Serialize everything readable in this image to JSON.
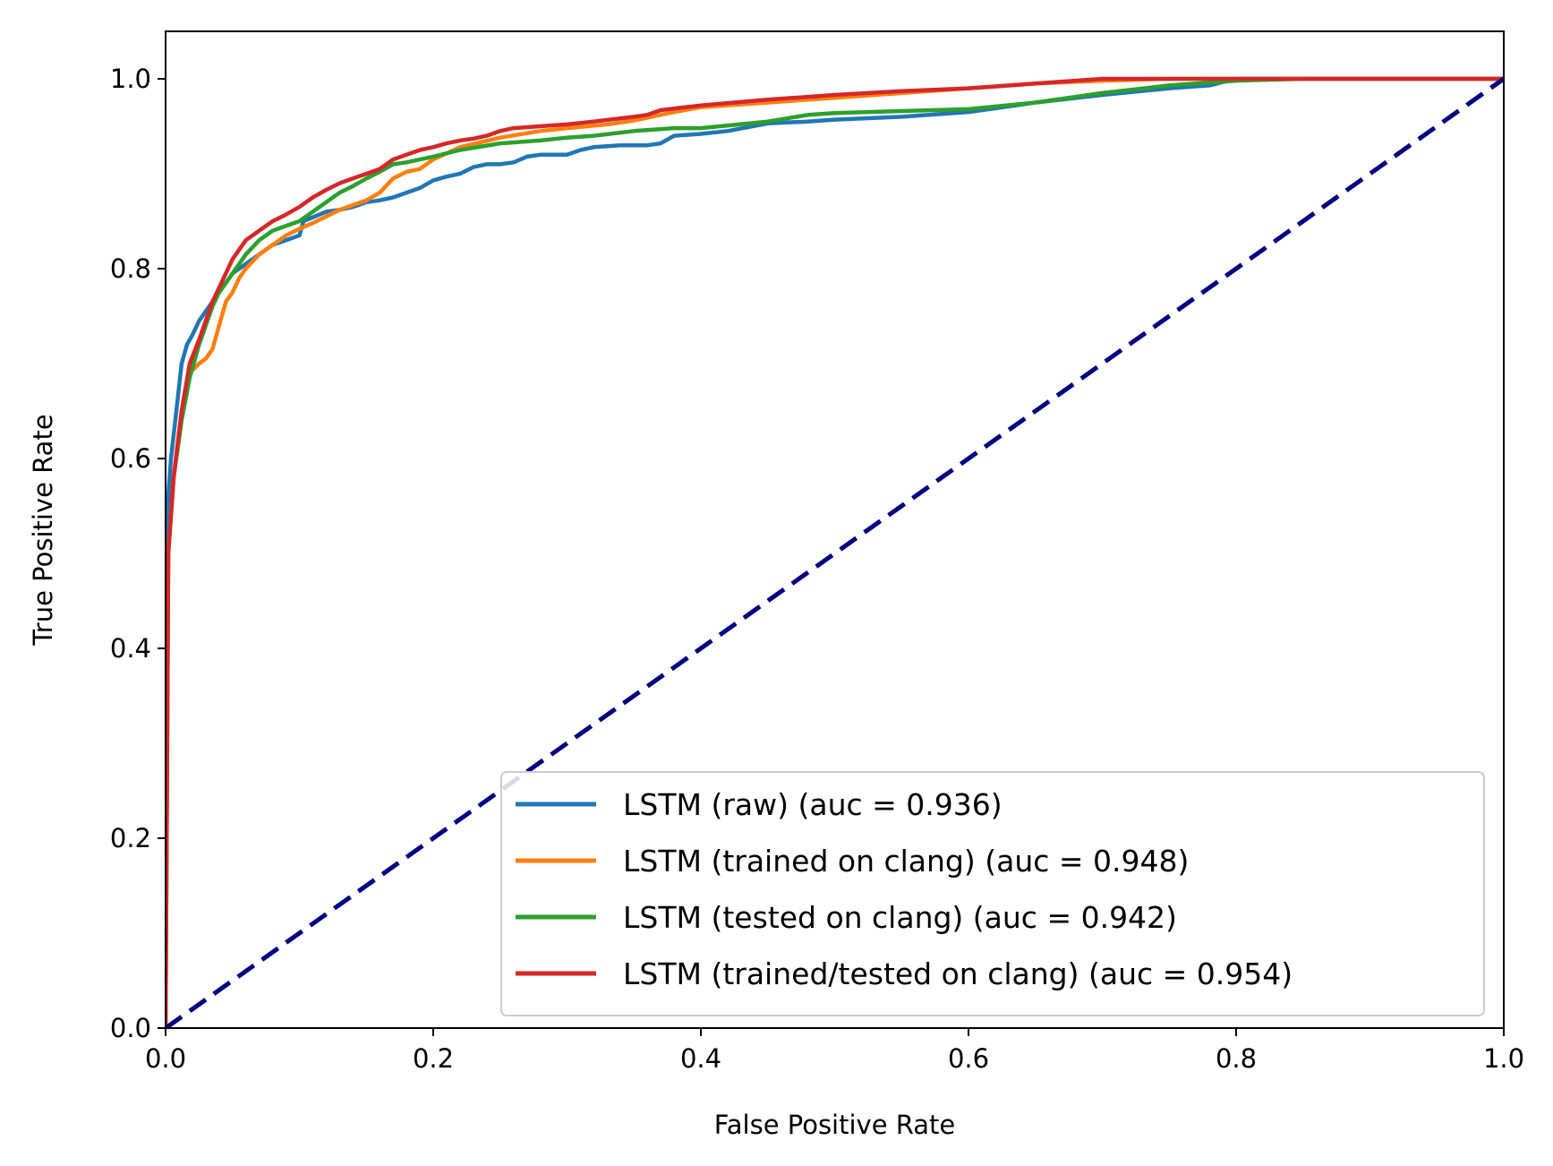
{
  "chart_data": {
    "type": "line",
    "title": "",
    "xlabel": "False Positive Rate",
    "ylabel": "True Positive Rate",
    "xlim": [
      0.0,
      1.0
    ],
    "ylim": [
      0.0,
      1.05
    ],
    "grid": false,
    "legend_position": "lower-right",
    "xticks": [
      "0.0",
      "0.2",
      "0.4",
      "0.6",
      "0.8",
      "1.0"
    ],
    "yticks": [
      "0.0",
      "0.2",
      "0.4",
      "0.6",
      "0.8",
      "1.0"
    ],
    "series": [
      {
        "name": "LSTM (raw) (auc = 0.936)",
        "color": "#1f77b4",
        "x": [
          0.0,
          0.001,
          0.004,
          0.008,
          0.012,
          0.016,
          0.02,
          0.025,
          0.03,
          0.035,
          0.04,
          0.045,
          0.05,
          0.06,
          0.07,
          0.08,
          0.09,
          0.1,
          0.103,
          0.12,
          0.13,
          0.14,
          0.15,
          0.16,
          0.17,
          0.19,
          0.2,
          0.21,
          0.22,
          0.23,
          0.24,
          0.25,
          0.26,
          0.27,
          0.28,
          0.3,
          0.31,
          0.32,
          0.34,
          0.36,
          0.37,
          0.38,
          0.4,
          0.42,
          0.45,
          0.48,
          0.5,
          0.55,
          0.6,
          0.65,
          0.7,
          0.75,
          0.78,
          0.8,
          0.85,
          0.9,
          1.0
        ],
        "y": [
          0.0,
          0.54,
          0.6,
          0.65,
          0.7,
          0.72,
          0.73,
          0.745,
          0.755,
          0.765,
          0.775,
          0.785,
          0.795,
          0.805,
          0.815,
          0.825,
          0.83,
          0.835,
          0.85,
          0.86,
          0.862,
          0.865,
          0.87,
          0.872,
          0.875,
          0.885,
          0.893,
          0.897,
          0.9,
          0.907,
          0.91,
          0.91,
          0.912,
          0.918,
          0.92,
          0.92,
          0.925,
          0.928,
          0.93,
          0.93,
          0.932,
          0.94,
          0.942,
          0.945,
          0.953,
          0.955,
          0.957,
          0.96,
          0.965,
          0.975,
          0.983,
          0.99,
          0.993,
          1.0,
          1.0,
          1.0,
          1.0
        ]
      },
      {
        "name": "LSTM (trained on clang) (auc = 0.948)",
        "color": "#ff7f0e",
        "x": [
          0.0,
          0.002,
          0.006,
          0.012,
          0.018,
          0.025,
          0.03,
          0.035,
          0.04,
          0.045,
          0.05,
          0.055,
          0.06,
          0.07,
          0.08,
          0.09,
          0.1,
          0.11,
          0.12,
          0.13,
          0.14,
          0.15,
          0.16,
          0.17,
          0.18,
          0.19,
          0.2,
          0.22,
          0.25,
          0.28,
          0.3,
          0.33,
          0.35,
          0.38,
          0.4,
          0.45,
          0.5,
          0.55,
          0.6,
          0.65,
          0.7,
          0.75,
          0.8,
          0.9,
          1.0
        ],
        "y": [
          0.0,
          0.5,
          0.58,
          0.65,
          0.69,
          0.7,
          0.705,
          0.715,
          0.74,
          0.765,
          0.775,
          0.79,
          0.8,
          0.815,
          0.825,
          0.835,
          0.842,
          0.848,
          0.855,
          0.862,
          0.867,
          0.872,
          0.88,
          0.895,
          0.902,
          0.905,
          0.915,
          0.928,
          0.938,
          0.945,
          0.948,
          0.952,
          0.956,
          0.965,
          0.97,
          0.975,
          0.98,
          0.985,
          0.99,
          0.995,
          0.998,
          1.0,
          1.0,
          1.0,
          1.0
        ]
      },
      {
        "name": "LSTM (tested on clang) (auc = 0.942)",
        "color": "#2ca02c",
        "x": [
          0.0,
          0.002,
          0.006,
          0.012,
          0.018,
          0.025,
          0.03,
          0.035,
          0.04,
          0.045,
          0.05,
          0.06,
          0.07,
          0.08,
          0.09,
          0.1,
          0.11,
          0.12,
          0.13,
          0.14,
          0.15,
          0.16,
          0.17,
          0.18,
          0.19,
          0.2,
          0.22,
          0.25,
          0.28,
          0.3,
          0.32,
          0.35,
          0.38,
          0.4,
          0.45,
          0.48,
          0.5,
          0.55,
          0.6,
          0.65,
          0.7,
          0.75,
          0.8,
          0.85,
          1.0
        ],
        "y": [
          0.0,
          0.5,
          0.58,
          0.64,
          0.685,
          0.72,
          0.74,
          0.76,
          0.775,
          0.785,
          0.795,
          0.815,
          0.83,
          0.84,
          0.845,
          0.85,
          0.86,
          0.87,
          0.88,
          0.887,
          0.895,
          0.902,
          0.91,
          0.912,
          0.915,
          0.918,
          0.925,
          0.932,
          0.935,
          0.938,
          0.94,
          0.945,
          0.948,
          0.948,
          0.955,
          0.962,
          0.964,
          0.966,
          0.968,
          0.975,
          0.985,
          0.993,
          0.998,
          1.0,
          1.0
        ]
      },
      {
        "name": "LSTM (trained/tested on clang) (auc = 0.954)",
        "color": "#d62728",
        "x": [
          0.0,
          0.002,
          0.006,
          0.012,
          0.018,
          0.025,
          0.03,
          0.035,
          0.04,
          0.045,
          0.05,
          0.055,
          0.06,
          0.07,
          0.08,
          0.09,
          0.1,
          0.11,
          0.12,
          0.13,
          0.14,
          0.15,
          0.16,
          0.17,
          0.18,
          0.19,
          0.2,
          0.21,
          0.22,
          0.23,
          0.24,
          0.25,
          0.26,
          0.28,
          0.3,
          0.32,
          0.35,
          0.36,
          0.37,
          0.4,
          0.45,
          0.5,
          0.55,
          0.6,
          0.65,
          0.7,
          0.75,
          0.8,
          1.0
        ],
        "y": [
          0.0,
          0.5,
          0.58,
          0.65,
          0.7,
          0.725,
          0.745,
          0.765,
          0.78,
          0.795,
          0.81,
          0.82,
          0.83,
          0.84,
          0.85,
          0.857,
          0.865,
          0.875,
          0.883,
          0.89,
          0.895,
          0.9,
          0.905,
          0.915,
          0.92,
          0.925,
          0.928,
          0.932,
          0.935,
          0.937,
          0.94,
          0.945,
          0.948,
          0.95,
          0.952,
          0.955,
          0.96,
          0.962,
          0.967,
          0.972,
          0.978,
          0.983,
          0.987,
          0.99,
          0.995,
          1.0,
          1.0,
          1.0,
          1.0
        ]
      },
      {
        "name": "",
        "color": "#000080",
        "dashed": true,
        "x": [
          0.0,
          1.0
        ],
        "y": [
          0.0,
          1.0
        ]
      }
    ]
  }
}
